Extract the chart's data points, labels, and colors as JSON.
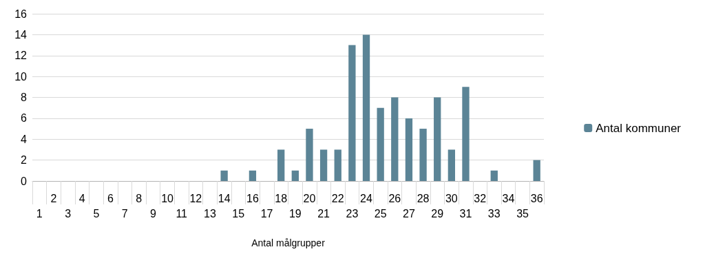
{
  "chart_data": {
    "type": "bar",
    "xlabel": "Antal målgrupper",
    "categories": [
      "1",
      "2",
      "3",
      "4",
      "5",
      "6",
      "7",
      "8",
      "9",
      "10",
      "11",
      "12",
      "13",
      "14",
      "15",
      "16",
      "17",
      "18",
      "19",
      "20",
      "21",
      "22",
      "23",
      "24",
      "25",
      "26",
      "27",
      "28",
      "29",
      "30",
      "31",
      "32",
      "33",
      "34",
      "35",
      "36"
    ],
    "series": [
      {
        "name": "Antal kommuner",
        "color": "#5b8496",
        "values": [
          0,
          0,
          0,
          0,
          0,
          0,
          0,
          0,
          0,
          0,
          0,
          0,
          0,
          1,
          0,
          1,
          0,
          3,
          1,
          5,
          3,
          3,
          13,
          14,
          7,
          8,
          6,
          5,
          8,
          3,
          9,
          0,
          1,
          0,
          0,
          2
        ]
      }
    ],
    "ylim": [
      0,
      16
    ],
    "yticks": [
      0,
      2,
      4,
      6,
      8,
      10,
      12,
      14,
      16
    ],
    "grid": "y",
    "legend": "right"
  }
}
